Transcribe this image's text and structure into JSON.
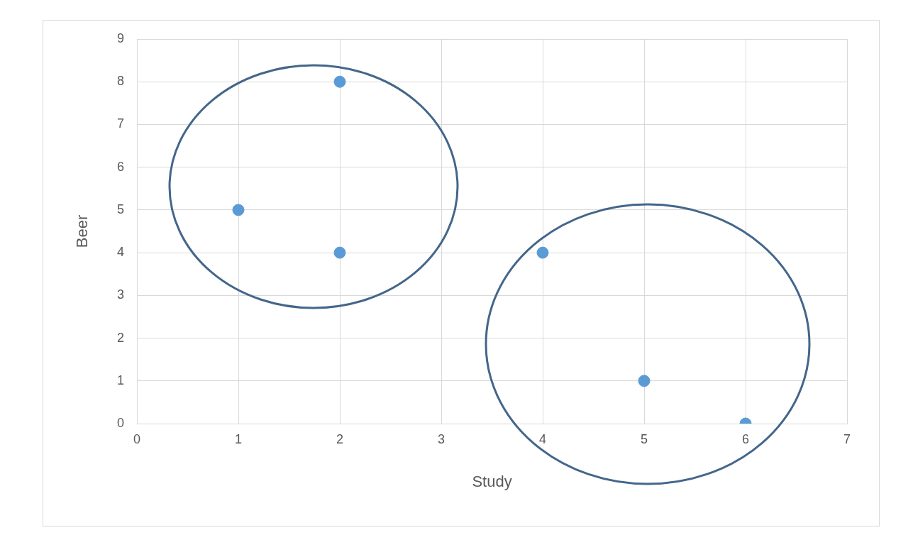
{
  "chart_data": {
    "type": "scatter",
    "xlabel": "Study",
    "ylabel": "Beer",
    "x": [
      1,
      2,
      2,
      4,
      5,
      6
    ],
    "values": [
      5,
      8,
      4,
      4,
      1,
      0
    ],
    "color": "#5b9bd5",
    "marker": "circle",
    "xlim": [
      0,
      7
    ],
    "ylim": [
      0,
      9
    ],
    "xticks": [
      0,
      1,
      2,
      3,
      4,
      5,
      6,
      7
    ],
    "yticks": [
      0,
      1,
      2,
      3,
      4,
      5,
      6,
      7,
      8,
      9
    ],
    "grid": true
  }
}
